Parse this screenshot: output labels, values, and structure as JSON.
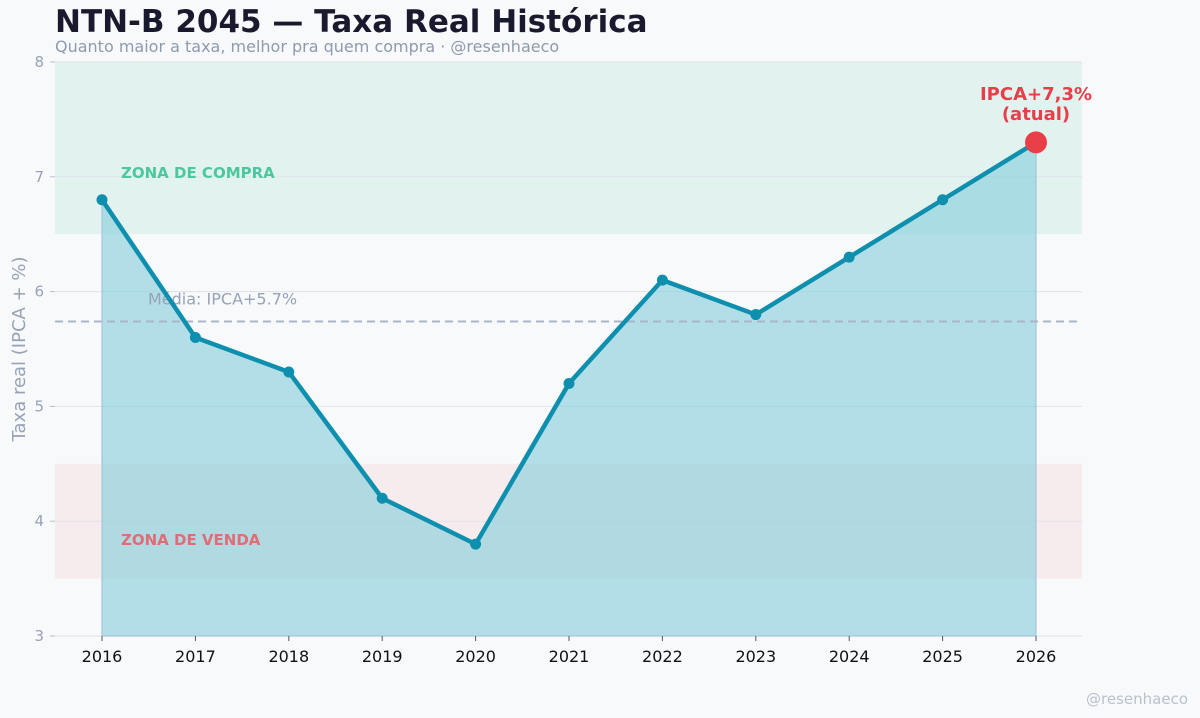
{
  "header": {
    "title": "NTN-B 2045 — Taxa Real Histórica",
    "subtitle": "Quanto maior a taxa, melhor pra quem compra · @resenhaeco"
  },
  "watermark": "@resenhaeco",
  "colors": {
    "line": "#0f8fae",
    "area": "#8ccfdc",
    "buy_zone": "#ccebe3",
    "sell_zone": "#f7dcdc",
    "buy_text": "#4cc79e",
    "sell_text": "#e06c76",
    "current": "#e83e48",
    "mean_line": "#aab6c8"
  },
  "chart_data": {
    "type": "line",
    "x": [
      "2016",
      "2017",
      "2018",
      "2019",
      "2020",
      "2021",
      "2022",
      "2023",
      "2024",
      "2025",
      "2026"
    ],
    "series": [
      {
        "values": [
          6.8,
          5.6,
          5.3,
          4.2,
          3.8,
          5.2,
          6.1,
          5.8,
          6.3,
          6.8,
          7.3
        ]
      }
    ],
    "ylabel": "Taxa real (IPCA + %)",
    "ylim": [
      3,
      8
    ],
    "yticks": [
      "3",
      "4",
      "5",
      "6",
      "7",
      "8"
    ],
    "grid": "horizontal",
    "zones": [
      {
        "label": "ZONA DE COMPRA",
        "from": 6.5,
        "to": 8.0
      },
      {
        "label": "ZONA DE VENDA",
        "from": 3.5,
        "to": 4.5
      }
    ],
    "mean": {
      "value": 5.74,
      "label": "Média: IPCA+5.7%"
    },
    "current_annotation": {
      "line1": "IPCA+7,3%",
      "line2": "(atual)"
    }
  }
}
